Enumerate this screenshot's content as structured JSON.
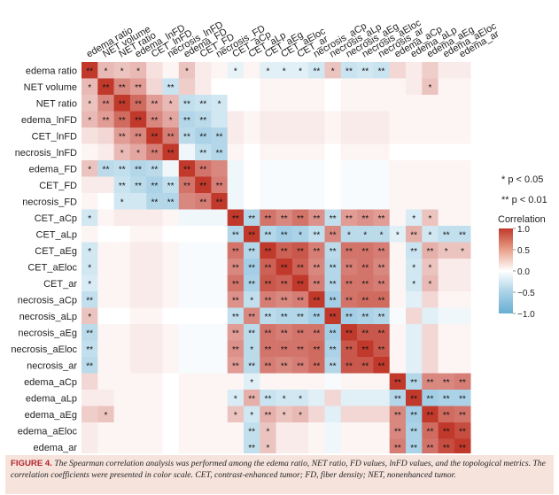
{
  "chart_data": {
    "type": "heatmap",
    "labels": [
      "edema ratio",
      "NET volume",
      "NET ratio",
      "edema_lnFD",
      "CET_lnFD",
      "necrosis_lnFD",
      "edema_FD",
      "CET_FD",
      "necrosis_FD",
      "CET_aCp",
      "CET_aLp",
      "CET_aEg",
      "CET_aEloc",
      "CET_ar",
      "necrosis_aCp",
      "necrosis_aLp",
      "necrosis_aEg",
      "necrosis_aEloc",
      "necrosis_ar",
      "edema_aCp",
      "edema_aLp",
      "edema_aEg",
      "edema_aEloc",
      "edema_ar"
    ],
    "matrix": [
      [
        1.0,
        0.35,
        0.3,
        0.35,
        0.15,
        0.05,
        0.3,
        0.1,
        0.05,
        -0.15,
        0.05,
        -0.2,
        -0.2,
        -0.2,
        -0.3,
        0.3,
        -0.35,
        -0.3,
        -0.35,
        0.2,
        0.1,
        0.25,
        0.1,
        0.1
      ],
      [
        0.35,
        1.0,
        0.6,
        0.5,
        0.2,
        -0.35,
        0.25,
        0.1,
        0.0,
        0.0,
        0.0,
        0.05,
        0.05,
        0.05,
        0.05,
        0.0,
        0.05,
        0.05,
        0.05,
        0.05,
        0.1,
        0.3,
        0.05,
        0.05
      ],
      [
        0.3,
        0.6,
        1.0,
        0.75,
        0.5,
        0.35,
        -0.4,
        -0.35,
        -0.3,
        0.0,
        0.0,
        0.05,
        0.05,
        0.05,
        0.05,
        0.0,
        0.05,
        0.05,
        0.05,
        0.05,
        0.05,
        0.05,
        0.05,
        0.05
      ],
      [
        0.35,
        0.5,
        0.75,
        1.0,
        0.6,
        0.45,
        -0.5,
        -0.45,
        -0.3,
        0.1,
        0.05,
        0.1,
        0.1,
        0.1,
        0.1,
        0.05,
        0.1,
        0.1,
        0.1,
        0.05,
        0.05,
        0.05,
        0.05,
        0.05
      ],
      [
        0.15,
        0.2,
        0.5,
        0.6,
        1.0,
        0.65,
        -0.45,
        -0.55,
        -0.5,
        0.1,
        0.05,
        0.1,
        0.1,
        0.1,
        0.1,
        0.05,
        0.1,
        0.1,
        0.1,
        0.05,
        0.05,
        0.05,
        0.05,
        0.05
      ],
      [
        0.05,
        0.1,
        0.35,
        0.45,
        0.65,
        1.0,
        -0.1,
        -0.4,
        -0.5,
        0.05,
        0.0,
        0.05,
        0.05,
        0.05,
        0.05,
        0.0,
        0.05,
        0.05,
        0.05,
        0.0,
        0.0,
        0.0,
        0.0,
        0.0
      ],
      [
        0.3,
        -0.45,
        -0.4,
        -0.5,
        -0.45,
        -0.1,
        1.0,
        0.7,
        0.6,
        -0.1,
        0.0,
        -0.05,
        -0.05,
        -0.05,
        -0.05,
        0.0,
        -0.05,
        -0.05,
        -0.05,
        0.05,
        0.05,
        0.05,
        0.05,
        0.05
      ],
      [
        0.1,
        0.1,
        -0.35,
        -0.45,
        -0.55,
        -0.4,
        0.7,
        1.0,
        0.65,
        -0.1,
        0.0,
        -0.05,
        -0.05,
        -0.05,
        -0.05,
        0.0,
        -0.05,
        -0.05,
        -0.05,
        0.05,
        0.05,
        0.05,
        0.05,
        0.05
      ],
      [
        0.05,
        0.0,
        -0.3,
        -0.3,
        -0.5,
        -0.5,
        0.6,
        0.65,
        1.0,
        -0.1,
        0.0,
        -0.05,
        -0.05,
        -0.05,
        -0.05,
        0.0,
        -0.05,
        -0.05,
        -0.05,
        0.05,
        0.05,
        0.05,
        0.05,
        0.05
      ],
      [
        -0.3,
        0.05,
        0.1,
        0.1,
        0.1,
        0.05,
        -0.1,
        -0.1,
        -0.1,
        1.0,
        -0.5,
        0.7,
        0.6,
        0.7,
        0.55,
        -0.4,
        0.5,
        0.55,
        0.5,
        0.05,
        -0.25,
        0.3,
        0.05,
        0.05
      ],
      [
        0.05,
        0.0,
        0.0,
        0.05,
        0.05,
        0.0,
        0.0,
        0.0,
        0.0,
        -0.5,
        1.0,
        -0.5,
        -0.6,
        -0.55,
        -0.4,
        0.6,
        -0.45,
        -0.45,
        -0.45,
        -0.2,
        0.4,
        -0.3,
        -0.4,
        -0.4
      ],
      [
        -0.3,
        0.05,
        0.05,
        0.1,
        0.1,
        0.05,
        -0.05,
        -0.05,
        -0.05,
        0.7,
        -0.5,
        1.0,
        0.8,
        0.85,
        0.65,
        -0.45,
        0.7,
        0.7,
        0.65,
        0.05,
        -0.35,
        0.4,
        0.3,
        0.3
      ],
      [
        -0.3,
        0.05,
        0.05,
        0.1,
        0.1,
        0.05,
        -0.05,
        -0.05,
        -0.05,
        0.6,
        -0.6,
        0.8,
        1.0,
        0.8,
        0.6,
        -0.5,
        0.65,
        0.7,
        0.6,
        0.05,
        -0.3,
        0.3,
        0.1,
        0.1
      ],
      [
        -0.25,
        0.05,
        0.05,
        0.1,
        0.1,
        0.05,
        -0.05,
        -0.05,
        -0.05,
        0.7,
        -0.55,
        0.85,
        0.8,
        1.0,
        0.65,
        -0.5,
        0.7,
        0.7,
        0.65,
        0.05,
        -0.3,
        0.35,
        0.1,
        0.1
      ],
      [
        -0.4,
        0.05,
        0.05,
        0.1,
        0.1,
        0.05,
        -0.05,
        -0.05,
        -0.05,
        0.55,
        -0.4,
        0.65,
        0.6,
        0.65,
        1.0,
        -0.6,
        0.7,
        0.75,
        0.75,
        0.05,
        -0.2,
        0.2,
        0.05,
        0.05
      ],
      [
        0.3,
        0.0,
        0.0,
        0.05,
        0.05,
        0.0,
        0.0,
        0.0,
        0.0,
        -0.4,
        0.6,
        -0.45,
        -0.5,
        -0.5,
        -0.6,
        1.0,
        -0.6,
        -0.55,
        -0.5,
        -0.05,
        0.2,
        -0.2,
        -0.1,
        -0.1
      ],
      [
        -0.45,
        0.05,
        0.05,
        0.1,
        0.1,
        0.05,
        -0.05,
        -0.05,
        -0.05,
        0.5,
        -0.45,
        0.7,
        0.65,
        0.7,
        0.7,
        -0.6,
        1.0,
        0.85,
        0.85,
        0.05,
        -0.2,
        0.2,
        0.05,
        0.05
      ],
      [
        -0.4,
        0.05,
        0.05,
        0.1,
        0.1,
        0.05,
        -0.05,
        -0.05,
        -0.05,
        0.55,
        -0.45,
        0.7,
        0.7,
        0.7,
        0.75,
        -0.55,
        0.85,
        1.0,
        0.85,
        0.05,
        -0.2,
        0.2,
        0.05,
        0.05
      ],
      [
        -0.45,
        0.05,
        0.05,
        0.1,
        0.1,
        0.05,
        -0.05,
        -0.05,
        -0.05,
        0.5,
        -0.45,
        0.65,
        0.6,
        0.65,
        0.75,
        -0.5,
        0.85,
        0.85,
        1.0,
        0.05,
        -0.2,
        0.2,
        0.05,
        0.05
      ],
      [
        0.2,
        0.05,
        0.05,
        0.05,
        0.05,
        0.0,
        0.05,
        0.05,
        0.05,
        0.05,
        -0.2,
        0.05,
        0.05,
        0.05,
        0.05,
        -0.05,
        0.05,
        0.05,
        0.05,
        1.0,
        -0.5,
        0.6,
        0.6,
        0.65
      ],
      [
        0.1,
        0.1,
        0.05,
        0.05,
        0.05,
        0.0,
        0.05,
        0.05,
        0.05,
        -0.25,
        0.4,
        -0.35,
        -0.3,
        -0.3,
        -0.2,
        0.2,
        -0.2,
        -0.2,
        -0.2,
        -0.5,
        1.0,
        -0.6,
        -0.55,
        -0.55
      ],
      [
        0.25,
        0.3,
        0.05,
        0.05,
        0.05,
        0.0,
        0.05,
        0.05,
        0.05,
        0.3,
        -0.3,
        0.4,
        0.3,
        0.35,
        0.2,
        -0.2,
        0.2,
        0.2,
        0.2,
        0.6,
        -0.6,
        1.0,
        0.75,
        0.7
      ],
      [
        0.1,
        0.05,
        0.05,
        0.05,
        0.05,
        0.0,
        0.05,
        0.05,
        0.05,
        0.05,
        -0.4,
        0.3,
        0.1,
        0.1,
        0.05,
        -0.1,
        0.05,
        0.05,
        0.05,
        0.6,
        -0.55,
        0.75,
        1.0,
        0.9
      ],
      [
        0.1,
        0.05,
        0.05,
        0.05,
        0.05,
        0.0,
        0.05,
        0.05,
        0.05,
        0.05,
        -0.4,
        0.3,
        0.1,
        0.1,
        0.05,
        -0.1,
        0.05,
        0.05,
        0.05,
        0.65,
        -0.55,
        0.7,
        0.9,
        1.0
      ]
    ],
    "significance": [
      [
        "**",
        "*",
        "*",
        "*",
        "",
        "",
        "*",
        "",
        "",
        "*",
        "",
        "*",
        "*",
        "*",
        "**",
        "*",
        "**",
        "**",
        "**",
        "",
        "",
        "",
        "",
        ""
      ],
      [
        "*",
        "**",
        "**",
        "**",
        "",
        "**",
        "",
        "",
        "",
        "",
        "",
        "",
        "",
        "",
        "",
        "",
        "",
        "",
        "",
        "",
        "",
        "*",
        "",
        ""
      ],
      [
        "*",
        "**",
        "**",
        "**",
        "**",
        "*",
        "**",
        "**",
        "*",
        "",
        "",
        "",
        "",
        "",
        "",
        "",
        "",
        "",
        "",
        "",
        "",
        "",
        "",
        ""
      ],
      [
        "*",
        "**",
        "**",
        "**",
        "**",
        "*",
        "**",
        "**",
        "",
        "",
        "",
        "",
        "",
        "",
        "",
        "",
        "",
        "",
        "",
        "",
        "",
        "",
        "",
        ""
      ],
      [
        "",
        "",
        "**",
        "**",
        "**",
        "**",
        "**",
        "**",
        "**",
        "",
        "",
        "",
        "",
        "",
        "",
        "",
        "",
        "",
        "",
        "",
        "",
        "",
        "",
        ""
      ],
      [
        "",
        "",
        "*",
        "*",
        "**",
        "**",
        "",
        "**",
        "**",
        "",
        "",
        "",
        "",
        "",
        "",
        "",
        "",
        "",
        "",
        "",
        "",
        "",
        "",
        ""
      ],
      [
        "*",
        "**",
        "**",
        "**",
        "**",
        "",
        "**",
        "**",
        "",
        "",
        "",
        "",
        "",
        "",
        "",
        "",
        "",
        "",
        "",
        "",
        "",
        "",
        "",
        ""
      ],
      [
        "",
        "",
        "**",
        "**",
        "**",
        "**",
        "**",
        "**",
        "**",
        "",
        "",
        "",
        "",
        "",
        "",
        "",
        "",
        "",
        "",
        "",
        "",
        "",
        "",
        ""
      ],
      [
        "",
        "",
        "*",
        "",
        "**",
        "**",
        "",
        "**",
        "**",
        "",
        "",
        "",
        "",
        "",
        "",
        "",
        "",
        "",
        "",
        "",
        "",
        "",
        "",
        ""
      ],
      [
        "*",
        "",
        "",
        "",
        "",
        "",
        "",
        "",
        "",
        "**",
        "**",
        "**",
        "**",
        "**",
        "**",
        "**",
        "**",
        "**",
        "**",
        "",
        "*",
        "*",
        "",
        ""
      ],
      [
        "",
        "",
        "",
        "",
        "",
        "",
        "",
        "",
        "",
        "**",
        "**",
        "**",
        "**",
        "*",
        "**",
        "**",
        "*",
        "*",
        "*",
        "*",
        "**",
        "*",
        "**",
        "**"
      ],
      [
        "*",
        "",
        "",
        "",
        "",
        "",
        "",
        "",
        "",
        "**",
        "**",
        "**",
        "**",
        "**",
        "**",
        "**",
        "**",
        "**",
        "**",
        "",
        "**",
        "**",
        "*",
        "*"
      ],
      [
        "*",
        "",
        "",
        "",
        "",
        "",
        "",
        "",
        "",
        "**",
        "**",
        "**",
        "**",
        "**",
        "**",
        "**",
        "**",
        "**",
        "**",
        "",
        "*",
        "*",
        "",
        ""
      ],
      [
        "*",
        "",
        "",
        "",
        "",
        "",
        "",
        "",
        "",
        "**",
        "**",
        "**",
        "**",
        "**",
        "**",
        "**",
        "**",
        "**",
        "**",
        "",
        "*",
        "*",
        "",
        ""
      ],
      [
        "**",
        "",
        "",
        "",
        "",
        "",
        "",
        "",
        "",
        "**",
        "*",
        "**",
        "**",
        "**",
        "**",
        "**",
        "**",
        "**",
        "**",
        "",
        "",
        "",
        "",
        ""
      ],
      [
        "*",
        "",
        "",
        "",
        "",
        "",
        "",
        "",
        "",
        "**",
        "**",
        "**",
        "**",
        "**",
        "**",
        "**",
        "**",
        "**",
        "**",
        "",
        "",
        "",
        "",
        ""
      ],
      [
        "**",
        "",
        "",
        "",
        "",
        "",
        "",
        "",
        "",
        "**",
        "**",
        "**",
        "**",
        "**",
        "**",
        "**",
        "**",
        "**",
        "**",
        "",
        "",
        "",
        "",
        ""
      ],
      [
        "**",
        "",
        "",
        "",
        "",
        "",
        "",
        "",
        "",
        "**",
        "*",
        "**",
        "**",
        "**",
        "**",
        "**",
        "**",
        "**",
        "**",
        "",
        "",
        "",
        "",
        ""
      ],
      [
        "**",
        "",
        "",
        "",
        "",
        "",
        "",
        "",
        "",
        "**",
        "**",
        "**",
        "**",
        "**",
        "**",
        "**",
        "**",
        "**",
        "**",
        "",
        "",
        "",
        "",
        ""
      ],
      [
        "",
        "",
        "",
        "",
        "",
        "",
        "",
        "",
        "",
        "",
        "*",
        "",
        "",
        "",
        "",
        "",
        "",
        "",
        "",
        "**",
        "**",
        "**",
        "**",
        "**"
      ],
      [
        "",
        "",
        "",
        "",
        "",
        "",
        "",
        "",
        "",
        "*",
        "**",
        "**",
        "*",
        "*",
        "",
        "",
        "",
        "",
        "",
        "**",
        "**",
        "**",
        "**",
        "**"
      ],
      [
        "",
        "*",
        "",
        "",
        "",
        "",
        "",
        "",
        "",
        "*",
        "*",
        "**",
        "*",
        "*",
        "",
        "",
        "",
        "",
        "",
        "**",
        "**",
        "**",
        "**",
        "**"
      ],
      [
        "",
        "",
        "",
        "",
        "",
        "",
        "",
        "",
        "",
        "",
        "**",
        "*",
        "",
        "",
        "",
        "",
        "",
        "",
        "",
        "**",
        "**",
        "**",
        "**",
        "**"
      ],
      [
        "",
        "",
        "",
        "",
        "",
        "",
        "",
        "",
        "",
        "",
        "**",
        "*",
        "",
        "",
        "",
        "",
        "",
        "",
        "",
        "**",
        "**",
        "**",
        "**",
        "**"
      ]
    ],
    "legend": {
      "title": "Correlation",
      "ticks": [
        1.0,
        0.5,
        0.0,
        -0.5,
        -1.0
      ],
      "tick_labels": [
        "1.0",
        "0.5",
        "0.0",
        "−0.5",
        "−1.0"
      ],
      "colors": {
        "high": "#c0392b",
        "mid": "#ffffff",
        "low": "#67aed3"
      }
    },
    "significance_notes": [
      "* p < 0.05",
      "** p < 0.01"
    ]
  },
  "caption": {
    "figure_label": "FIGURE 4.",
    "text": "The Spearman correlation analysis was performed among the edema ratio, NET ratio, FD values, lnFD values, and the topological metrics. The correlation coefficients were presented in color scale. CET, contrast-enhanced tumor; FD, fiber density; NET, nonenhanced tumor."
  }
}
